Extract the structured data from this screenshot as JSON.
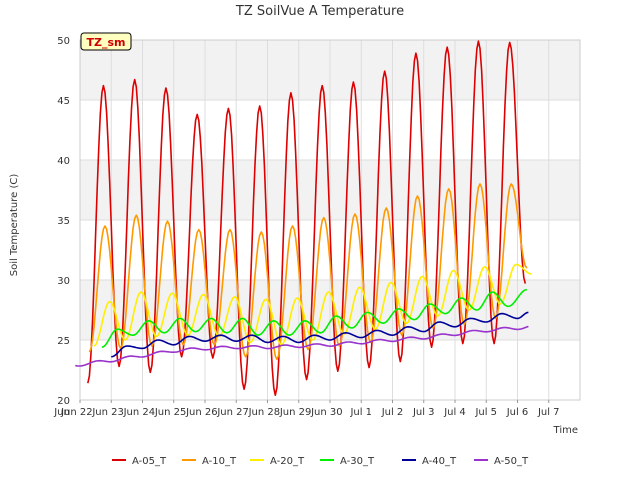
{
  "chart_data": {
    "type": "line",
    "title": "TZ SoilVue A Temperature",
    "xlabel": "Time",
    "ylabel": "Soil Temperature (C)",
    "ylim": [
      20,
      50
    ],
    "yticks": [
      20,
      25,
      30,
      35,
      40,
      45,
      50
    ],
    "xlim": [
      21,
      37
    ],
    "xticks": [
      {
        "x": 21,
        "label": "Jun 22"
      },
      {
        "x": 22,
        "label": "Jun 23"
      },
      {
        "x": 23,
        "label": "Jun 24"
      },
      {
        "x": 24,
        "label": "Jun 25"
      },
      {
        "x": 25,
        "label": "Jun 26"
      },
      {
        "x": 26,
        "label": "Jun 27"
      },
      {
        "x": 27,
        "label": "Jun 28"
      },
      {
        "x": 28,
        "label": "Jun 29"
      },
      {
        "x": 29,
        "label": "Jun 30"
      },
      {
        "x": 30,
        "label": "Jul 1"
      },
      {
        "x": 31,
        "label": "Jul 2"
      },
      {
        "x": 32,
        "label": "Jul 3"
      },
      {
        "x": 33,
        "label": "Jul 4"
      },
      {
        "x": 34,
        "label": "Jul 5"
      },
      {
        "x": 35,
        "label": "Jul 6"
      },
      {
        "x": 36,
        "label": "Jul 7"
      }
    ],
    "tick_labels_rendered": [
      {
        "x": 20.9,
        "text": "Jun 22"
      },
      {
        "x": 21.9,
        "text": "Jun 23"
      },
      {
        "x": 22.9,
        "text": "Jun 24"
      },
      {
        "x": 23.9,
        "text": "Jun 25"
      },
      {
        "x": 24.9,
        "text": "Jun 26"
      },
      {
        "x": 25.9,
        "text": "Jun 27"
      },
      {
        "x": 26.9,
        "text": "Jun 28"
      },
      {
        "x": 27.9,
        "text": "Jun 29"
      },
      {
        "x": 28.9,
        "text": "Jun 30"
      },
      {
        "x": 30,
        "text": "Jul 1"
      },
      {
        "x": 31,
        "text": "Jul 2"
      },
      {
        "x": 32,
        "text": "Jul 3"
      },
      {
        "x": 33,
        "text": "Jul 4"
      },
      {
        "x": 34,
        "text": "Jul 5"
      },
      {
        "x": 35,
        "text": "Jul 6"
      },
      {
        "x": 36,
        "text": "Jul 7"
      }
    ],
    "x_edge_label": "Jun",
    "badge": "TZ_sm",
    "grid": true,
    "shaded_bands": [
      [
        25,
        30
      ],
      [
        35,
        40
      ],
      [
        45,
        50
      ]
    ],
    "legend_position": "bottom",
    "series": [
      {
        "name": "A-05_T",
        "color": "#dd0000",
        "peak_times": [
          21.75,
          22.75,
          23.75,
          24.75,
          25.75,
          26.75,
          27.75,
          28.75,
          29.75,
          30.75,
          31.75,
          32.75,
          33.75,
          34.75
        ],
        "peaks": [
          46.2,
          46.7,
          46.0,
          43.8,
          44.3,
          44.5,
          45.6,
          46.2,
          46.5,
          47.4,
          48.9,
          49.4,
          49.9,
          49.8
        ],
        "trough_times": [
          21.25,
          22.25,
          23.25,
          24.25,
          25.25,
          26.25,
          27.25,
          28.25,
          29.25,
          30.25,
          31.25,
          32.25,
          33.25,
          34.25,
          35.25
        ],
        "troughs": [
          21.4,
          22.8,
          22.3,
          23.6,
          23.5,
          20.9,
          20.4,
          21.7,
          22.4,
          22.7,
          23.2,
          24.4,
          24.7,
          24.7,
          29.7
        ]
      },
      {
        "name": "A-10_T",
        "color": "#ff9900",
        "peak_times": [
          21.8,
          22.8,
          23.8,
          24.8,
          25.8,
          26.8,
          27.8,
          28.8,
          29.8,
          30.8,
          31.8,
          32.8,
          33.8,
          34.8
        ],
        "peaks": [
          34.5,
          35.4,
          34.9,
          34.2,
          34.2,
          34.0,
          34.5,
          35.2,
          35.5,
          36.0,
          37.0,
          37.6,
          38.0,
          38.0
        ],
        "trough_times": [
          21.3,
          22.3,
          23.3,
          24.3,
          25.3,
          26.3,
          27.3,
          28.3,
          29.3,
          30.3,
          31.3,
          32.3,
          33.3,
          34.3,
          35.3
        ],
        "troughs": [
          24.0,
          24.3,
          24.5,
          24.6,
          24.6,
          23.6,
          23.4,
          24.2,
          24.5,
          24.8,
          25.4,
          26.0,
          26.3,
          26.8,
          31.0
        ]
      },
      {
        "name": "A-20_T",
        "color": "#ffee00",
        "peak_times": [
          21.95,
          22.95,
          23.95,
          24.95,
          25.95,
          26.95,
          27.95,
          28.95,
          29.95,
          30.95,
          31.95,
          32.95,
          33.95,
          34.95
        ],
        "peaks": [
          28.2,
          29.0,
          28.9,
          28.8,
          28.6,
          28.4,
          28.5,
          29.0,
          29.4,
          29.8,
          30.3,
          30.8,
          31.1,
          31.3
        ],
        "trough_times": [
          21.45,
          22.45,
          23.45,
          24.45,
          25.45,
          26.45,
          27.45,
          28.45,
          29.45,
          30.45,
          31.45,
          32.45,
          33.45,
          34.45,
          35.45
        ],
        "troughs": [
          24.5,
          25.0,
          25.3,
          25.4,
          25.3,
          24.8,
          24.6,
          25.0,
          25.5,
          25.9,
          26.4,
          27.0,
          27.5,
          28.0,
          30.5
        ]
      },
      {
        "name": "A-30_T",
        "color": "#00ee00",
        "peak_times": [
          22.2,
          23.2,
          24.2,
          25.2,
          26.2,
          27.2,
          28.2,
          29.2,
          30.2,
          31.2,
          32.2,
          33.2,
          34.2,
          35.3
        ],
        "peaks": [
          25.9,
          26.6,
          26.8,
          26.8,
          26.8,
          26.6,
          26.6,
          27.0,
          27.3,
          27.6,
          28.0,
          28.5,
          29.0,
          29.2
        ],
        "trough_times": [
          21.7,
          22.7,
          23.7,
          24.7,
          25.7,
          26.7,
          27.7,
          28.7,
          29.7,
          30.7,
          31.7,
          32.7,
          33.7,
          34.7
        ],
        "troughs": [
          24.4,
          25.4,
          25.6,
          25.7,
          25.6,
          25.4,
          25.4,
          25.6,
          26.0,
          26.4,
          26.7,
          27.2,
          27.5,
          27.8
        ]
      },
      {
        "name": "A-40_T",
        "color": "#000099",
        "peak_times": [
          22.5,
          23.5,
          24.5,
          25.5,
          26.5,
          27.5,
          28.5,
          29.5,
          30.5,
          31.5,
          32.5,
          33.5,
          34.5,
          35.35
        ],
        "peaks": [
          24.5,
          25.0,
          25.3,
          25.4,
          25.4,
          25.3,
          25.4,
          25.6,
          25.8,
          26.1,
          26.5,
          26.8,
          27.2,
          27.3
        ],
        "trough_times": [
          22.0,
          23.0,
          24.0,
          25.0,
          26.0,
          27.0,
          28.0,
          29.0,
          30.0,
          31.0,
          32.0,
          33.0,
          34.0,
          35.0
        ],
        "troughs": [
          23.6,
          24.3,
          24.6,
          24.9,
          24.9,
          24.8,
          24.8,
          25.0,
          25.2,
          25.4,
          25.7,
          26.1,
          26.5,
          26.8
        ]
      },
      {
        "name": "A-50_T",
        "color": "#9933cc",
        "x_start": 20.85,
        "x_end": 35.35,
        "trend": [
          [
            20.85,
            22.9
          ],
          [
            22.0,
            23.3
          ],
          [
            23.0,
            23.7
          ],
          [
            24.0,
            24.1
          ],
          [
            25.0,
            24.3
          ],
          [
            26.0,
            24.4
          ],
          [
            27.0,
            24.4
          ],
          [
            28.0,
            24.5
          ],
          [
            29.0,
            24.6
          ],
          [
            30.0,
            24.8
          ],
          [
            31.0,
            25.0
          ],
          [
            32.0,
            25.2
          ],
          [
            33.0,
            25.5
          ],
          [
            34.0,
            25.8
          ],
          [
            35.0,
            26.0
          ],
          [
            35.35,
            26.1
          ]
        ],
        "ripple": 0.12
      }
    ]
  }
}
